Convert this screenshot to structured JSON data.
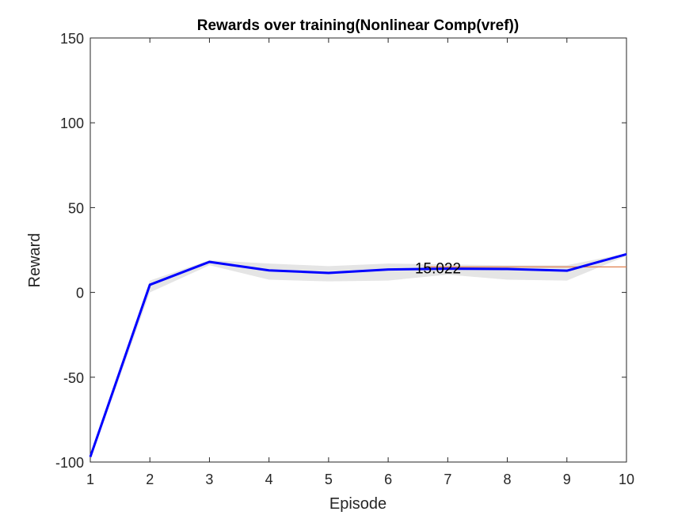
{
  "chart_data": {
    "type": "line",
    "title": "Rewards over training(Nonlinear Comp(vref))",
    "xlabel": "Episode",
    "ylabel": "Reward",
    "xlim": [
      1,
      10
    ],
    "ylim": [
      -100,
      150
    ],
    "xticks": [
      1,
      2,
      3,
      4,
      5,
      6,
      7,
      8,
      9,
      10
    ],
    "yticks": [
      -100,
      -50,
      0,
      50,
      100,
      150
    ],
    "grid": false,
    "series": [
      {
        "role": "mean",
        "color": "#0000ff",
        "x": [
          1,
          2,
          3,
          4,
          5,
          6,
          7,
          8,
          9,
          10
        ],
        "y": [
          -97,
          4.5,
          18,
          13,
          11.5,
          13.5,
          14,
          13.8,
          12.8,
          22.5
        ]
      },
      {
        "role": "band",
        "color": "#e5e5e5",
        "x": [
          1,
          2,
          3,
          4,
          5,
          6,
          7,
          8,
          9,
          10
        ],
        "upper": [
          -95,
          7,
          19,
          17,
          15.5,
          17,
          16.5,
          16,
          16,
          23
        ],
        "lower": [
          -99,
          0,
          16,
          7.5,
          6.5,
          7,
          10.5,
          7.5,
          7,
          21.5
        ]
      },
      {
        "role": "reference",
        "color": "#e08050",
        "x": [
          6.6,
          10
        ],
        "y": [
          15.022,
          15.022
        ]
      }
    ],
    "annotations": [
      {
        "text": "15.022",
        "x": 6.45,
        "y": 15.022
      }
    ]
  }
}
